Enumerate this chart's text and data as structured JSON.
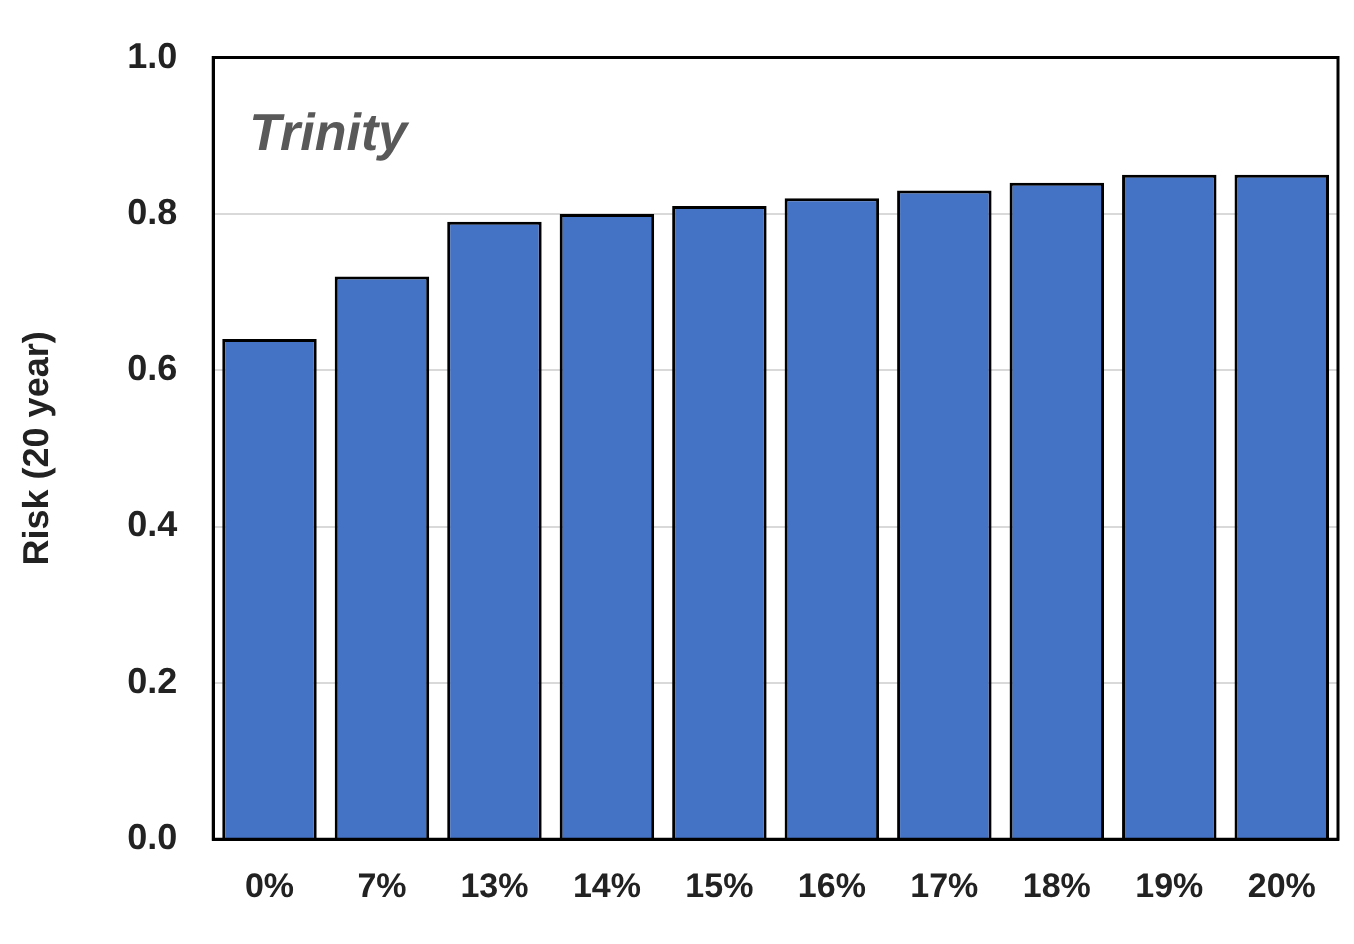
{
  "chart_data": {
    "type": "bar",
    "ylabel": "Risk (20 year)",
    "annotations": [
      "Trinity"
    ],
    "categories": [
      "0%",
      "7%",
      "13%",
      "14%",
      "15%",
      "16%",
      "17%",
      "18%",
      "19%",
      "20%"
    ],
    "values": [
      0.64,
      0.72,
      0.79,
      0.8,
      0.81,
      0.82,
      0.83,
      0.84,
      0.85,
      0.85
    ],
    "color": "#4472c4",
    "ylim": [
      0,
      1
    ],
    "yticks": [
      {
        "value": 0,
        "label": "0.0"
      },
      0.2,
      0.4,
      0.6,
      0.8,
      {
        "value": 1,
        "label": "1.0"
      }
    ],
    "grid": "y"
  }
}
